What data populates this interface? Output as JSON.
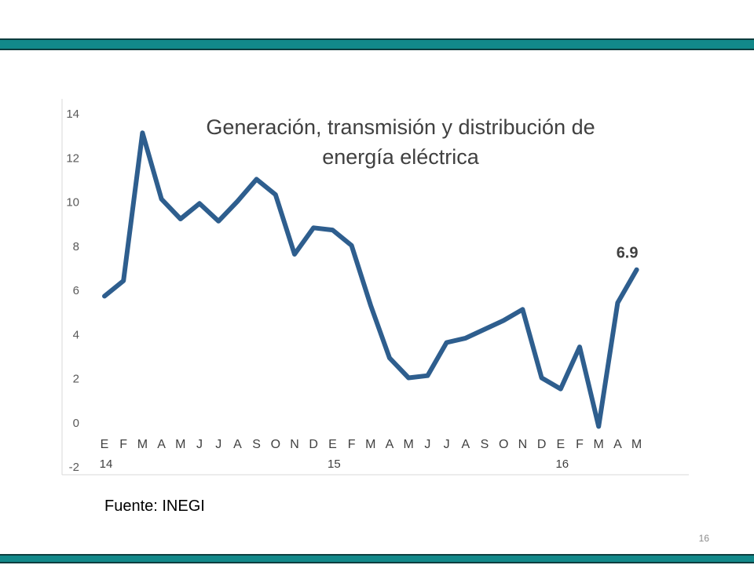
{
  "colors": {
    "band": "#12898a",
    "band_border": "#0d3d3e",
    "series_line": "#2e5e8e",
    "axis": "#d9d9d9",
    "tick_text": "#595959",
    "title_text": "#404040"
  },
  "chart_data": {
    "type": "line",
    "title_lines": [
      "Generación, transmisión y distribución de",
      "energía eléctrica"
    ],
    "xlabel": "",
    "ylabel": "",
    "ylim": [
      -2,
      14
    ],
    "yticks": [
      "14",
      "12",
      "10",
      "8",
      "6",
      "4",
      "2",
      "0",
      "-2"
    ],
    "grid": false,
    "legend": "none",
    "categories": [
      "E",
      "F",
      "M",
      "A",
      "M",
      "J",
      "J",
      "A",
      "S",
      "O",
      "N",
      "D",
      "E",
      "F",
      "M",
      "A",
      "M",
      "J",
      "J",
      "A",
      "S",
      "O",
      "N",
      "D",
      "E",
      "F",
      "M",
      "A",
      "M"
    ],
    "year_labels": [
      {
        "index": 0,
        "label": "14"
      },
      {
        "index": 12,
        "label": "15"
      },
      {
        "index": 24,
        "label": "16"
      }
    ],
    "series": [
      {
        "values": [
          5.7,
          6.4,
          13.1,
          10.1,
          9.2,
          9.9,
          9.1,
          10.0,
          11.0,
          10.3,
          7.6,
          8.8,
          8.7,
          8.0,
          5.3,
          2.9,
          2.0,
          2.1,
          3.6,
          3.8,
          4.2,
          4.6,
          5.1,
          2.0,
          1.5,
          3.4,
          -0.2,
          5.4,
          6.9
        ]
      }
    ],
    "annotations": [
      {
        "index": 28,
        "label": "6.9"
      }
    ]
  },
  "footer": {
    "source": "Fuente: INEGI",
    "page_number": "16"
  }
}
